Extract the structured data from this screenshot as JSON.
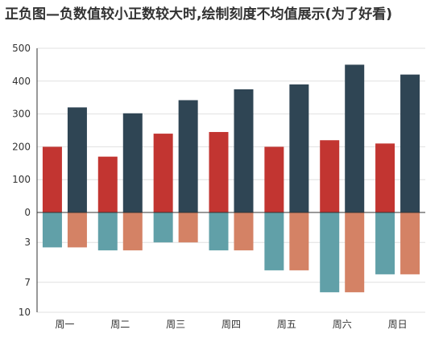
{
  "chart_data": {
    "type": "bar",
    "title": "正负图—负数值较小正数较大时,绘制刻度不均值展示(为了好看)",
    "categories": [
      "周一",
      "周二",
      "周三",
      "周四",
      "周五",
      "周六",
      "周日"
    ],
    "series": [
      {
        "color": "#c23531",
        "values": [
          200,
          170,
          240,
          245,
          200,
          220,
          210
        ]
      },
      {
        "color": "#2f4554",
        "values": [
          320,
          302,
          342,
          375,
          390,
          450,
          420
        ]
      },
      {
        "color": "#61a0a8",
        "values": [
          -3.5,
          -3.8,
          -3.0,
          -3.8,
          -5.8,
          -8.0,
          -6.2
        ]
      },
      {
        "color": "#d48265",
        "values": [
          -3.5,
          -3.8,
          -3.0,
          -3.8,
          -5.8,
          -8.0,
          -6.2
        ]
      }
    ],
    "positive_axis": {
      "ticks": [
        0,
        100,
        200,
        300,
        400,
        500
      ],
      "ylim": [
        0,
        500
      ]
    },
    "negative_axis": {
      "ticks": [
        "0",
        "3",
        "7",
        "10"
      ],
      "ylim": [
        0,
        10
      ]
    },
    "grid": true
  }
}
